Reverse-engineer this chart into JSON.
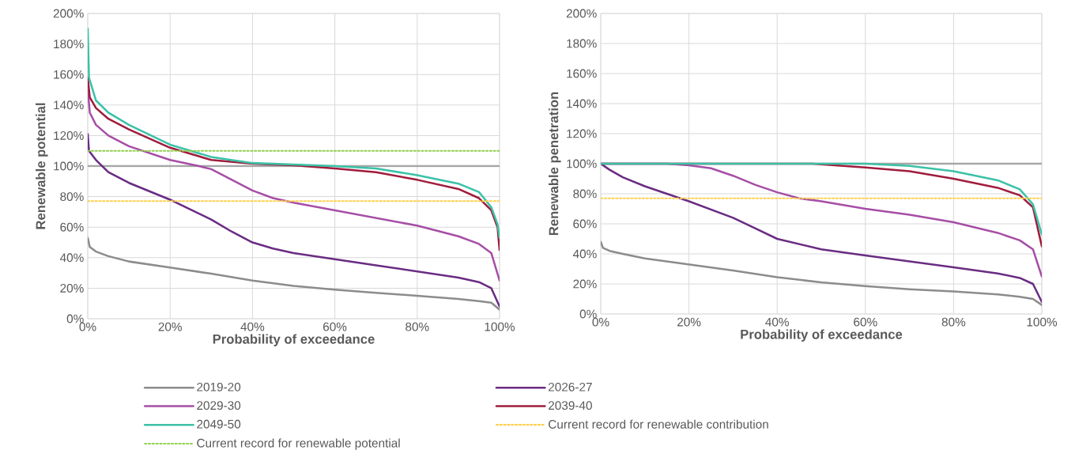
{
  "chart_data": [
    {
      "type": "line",
      "xlabel": "Probability of exceedance",
      "ylabel": "Renewable potential",
      "xlim": [
        0,
        100
      ],
      "ylim": [
        0,
        200
      ],
      "xticks": [
        {
          "value": 0,
          "label": "0%"
        },
        {
          "value": 20,
          "label": "20%"
        },
        {
          "value": 40,
          "label": "40%"
        },
        {
          "value": 60,
          "label": "60%"
        },
        {
          "value": 80,
          "label": "80%"
        },
        {
          "value": 100,
          "label": "100%"
        }
      ],
      "yticks": [
        {
          "value": 0,
          "label": "0%"
        },
        {
          "value": 20,
          "label": "20%"
        },
        {
          "value": 40,
          "label": "40%"
        },
        {
          "value": 60,
          "label": "60%"
        },
        {
          "value": 80,
          "label": "80%"
        },
        {
          "value": 100,
          "label": "100%"
        },
        {
          "value": 120,
          "label": "120%"
        },
        {
          "value": 140,
          "label": "140%"
        },
        {
          "value": 160,
          "label": "160%"
        },
        {
          "value": 180,
          "label": "180%"
        },
        {
          "value": 200,
          "label": "200%"
        }
      ],
      "grid": true,
      "legend": "bottom",
      "ref_lines": [
        {
          "axis": "y",
          "value": 100,
          "color": "#a6a6a6"
        }
      ],
      "series": [
        {
          "name": "2019-20",
          "color": "#8c8c8c",
          "x": [
            0,
            0.5,
            2,
            5,
            10,
            20,
            30,
            40,
            50,
            60,
            70,
            80,
            90,
            95,
            98,
            100
          ],
          "values": [
            53,
            47,
            44,
            41,
            37.5,
            33.5,
            29.5,
            25,
            21.5,
            19,
            17,
            15,
            13,
            11.5,
            10.5,
            6
          ]
        },
        {
          "name": "2026-27",
          "color": "#6a2c83",
          "x": [
            0,
            0.3,
            2,
            5,
            10,
            20,
            30,
            35,
            40,
            45,
            50,
            60,
            70,
            80,
            90,
            95,
            98,
            100
          ],
          "values": [
            121,
            110,
            104,
            96,
            89,
            78,
            65,
            57,
            50,
            46,
            43,
            39,
            35,
            31,
            27,
            24,
            20,
            8
          ]
        },
        {
          "name": "2029-30",
          "color": "#a64ea6",
          "x": [
            0,
            0.5,
            2,
            5,
            10,
            20,
            27,
            30,
            35,
            40,
            45,
            50,
            60,
            70,
            80,
            90,
            95,
            98,
            100
          ],
          "values": [
            150,
            135,
            127,
            120,
            113,
            104,
            100,
            98,
            91,
            84,
            79,
            76,
            71,
            66,
            61,
            54,
            49,
            43,
            25
          ]
        },
        {
          "name": "2039-40",
          "color": "#a01c3c",
          "x": [
            0,
            0.5,
            2,
            5,
            10,
            20,
            30,
            40,
            50,
            60,
            70,
            80,
            90,
            95,
            98,
            99.5,
            100
          ],
          "values": [
            158,
            145,
            138,
            131,
            124,
            112,
            104,
            101.5,
            100.5,
            98.5,
            96,
            91,
            85,
            79,
            71,
            60,
            45
          ]
        },
        {
          "name": "2049-50",
          "color": "#3cc1a8",
          "x": [
            0,
            0.3,
            2,
            5,
            10,
            20,
            30,
            40,
            50,
            60,
            70,
            80,
            90,
            95,
            98,
            99.5,
            100
          ],
          "values": [
            190,
            158,
            143,
            135,
            127,
            114,
            106,
            102,
            101,
            100,
            98.5,
            94,
            88.5,
            83,
            73,
            62,
            53
          ]
        },
        {
          "name": "Current record for renewable contribution",
          "color": "#ffd050",
          "line_style": "dotted",
          "x": [
            0,
            100
          ],
          "values": [
            77,
            77
          ]
        },
        {
          "name": "Current record for renewable potential",
          "color": "#92d050",
          "line_style": "dotted",
          "x": [
            0,
            100
          ],
          "values": [
            110,
            110
          ]
        }
      ]
    },
    {
      "type": "line",
      "xlabel": "Probability of exceedance",
      "ylabel": "Renewable penetration",
      "xlim": [
        0,
        100
      ],
      "ylim": [
        0,
        200
      ],
      "xticks": [
        {
          "value": 0,
          "label": "0%"
        },
        {
          "value": 20,
          "label": "20%"
        },
        {
          "value": 40,
          "label": "40%"
        },
        {
          "value": 60,
          "label": "60%"
        },
        {
          "value": 80,
          "label": "80%"
        },
        {
          "value": 100,
          "label": "100%"
        }
      ],
      "yticks": [
        {
          "value": 0,
          "label": "0%"
        },
        {
          "value": 20,
          "label": "20%"
        },
        {
          "value": 40,
          "label": "40%"
        },
        {
          "value": 60,
          "label": "60%"
        },
        {
          "value": 80,
          "label": "80%"
        },
        {
          "value": 100,
          "label": "100%"
        },
        {
          "value": 120,
          "label": "120%"
        },
        {
          "value": 140,
          "label": "140%"
        },
        {
          "value": 160,
          "label": "160%"
        },
        {
          "value": 180,
          "label": "180%"
        },
        {
          "value": 200,
          "label": "200%"
        }
      ],
      "grid": true,
      "ref_lines": [
        {
          "axis": "y",
          "value": 100,
          "color": "#a6a6a6"
        }
      ],
      "series": [
        {
          "color": "#8c8c8c",
          "x": [
            0,
            0.5,
            2,
            5,
            10,
            20,
            30,
            40,
            50,
            60,
            70,
            80,
            90,
            95,
            98,
            100
          ],
          "values": [
            48,
            44,
            42,
            40,
            37,
            33,
            29,
            24.5,
            21,
            18.5,
            16.5,
            15,
            13,
            11.5,
            10,
            6
          ]
        },
        {
          "color": "#6a2c83",
          "x": [
            0,
            2,
            5,
            10,
            20,
            30,
            35,
            40,
            50,
            60,
            70,
            80,
            90,
            95,
            98,
            100
          ],
          "values": [
            100,
            96,
            91,
            85,
            75,
            64,
            57,
            50,
            43,
            39,
            35,
            31,
            27,
            24,
            20,
            8
          ]
        },
        {
          "color": "#a64ea6",
          "x": [
            0,
            15,
            20,
            25,
            30,
            35,
            40,
            45,
            50,
            60,
            70,
            80,
            90,
            95,
            98,
            100
          ],
          "values": [
            100,
            100,
            99,
            97,
            92,
            86,
            81,
            77,
            75,
            70,
            66,
            61,
            54,
            49,
            43,
            25
          ]
        },
        {
          "color": "#a01c3c",
          "x": [
            0,
            48,
            55,
            60,
            70,
            80,
            90,
            95,
            98,
            100
          ],
          "values": [
            100,
            100,
            98.5,
            97.5,
            95,
            90,
            84,
            79,
            71,
            45
          ]
        },
        {
          "color": "#3cc1a8",
          "x": [
            0,
            60,
            70,
            80,
            90,
            95,
            98,
            100
          ],
          "values": [
            100,
            100,
            98.5,
            95,
            89,
            83,
            73,
            53
          ]
        },
        {
          "color": "#ffd050",
          "line_style": "dotted",
          "x": [
            0,
            100
          ],
          "values": [
            77,
            77
          ]
        }
      ]
    }
  ]
}
